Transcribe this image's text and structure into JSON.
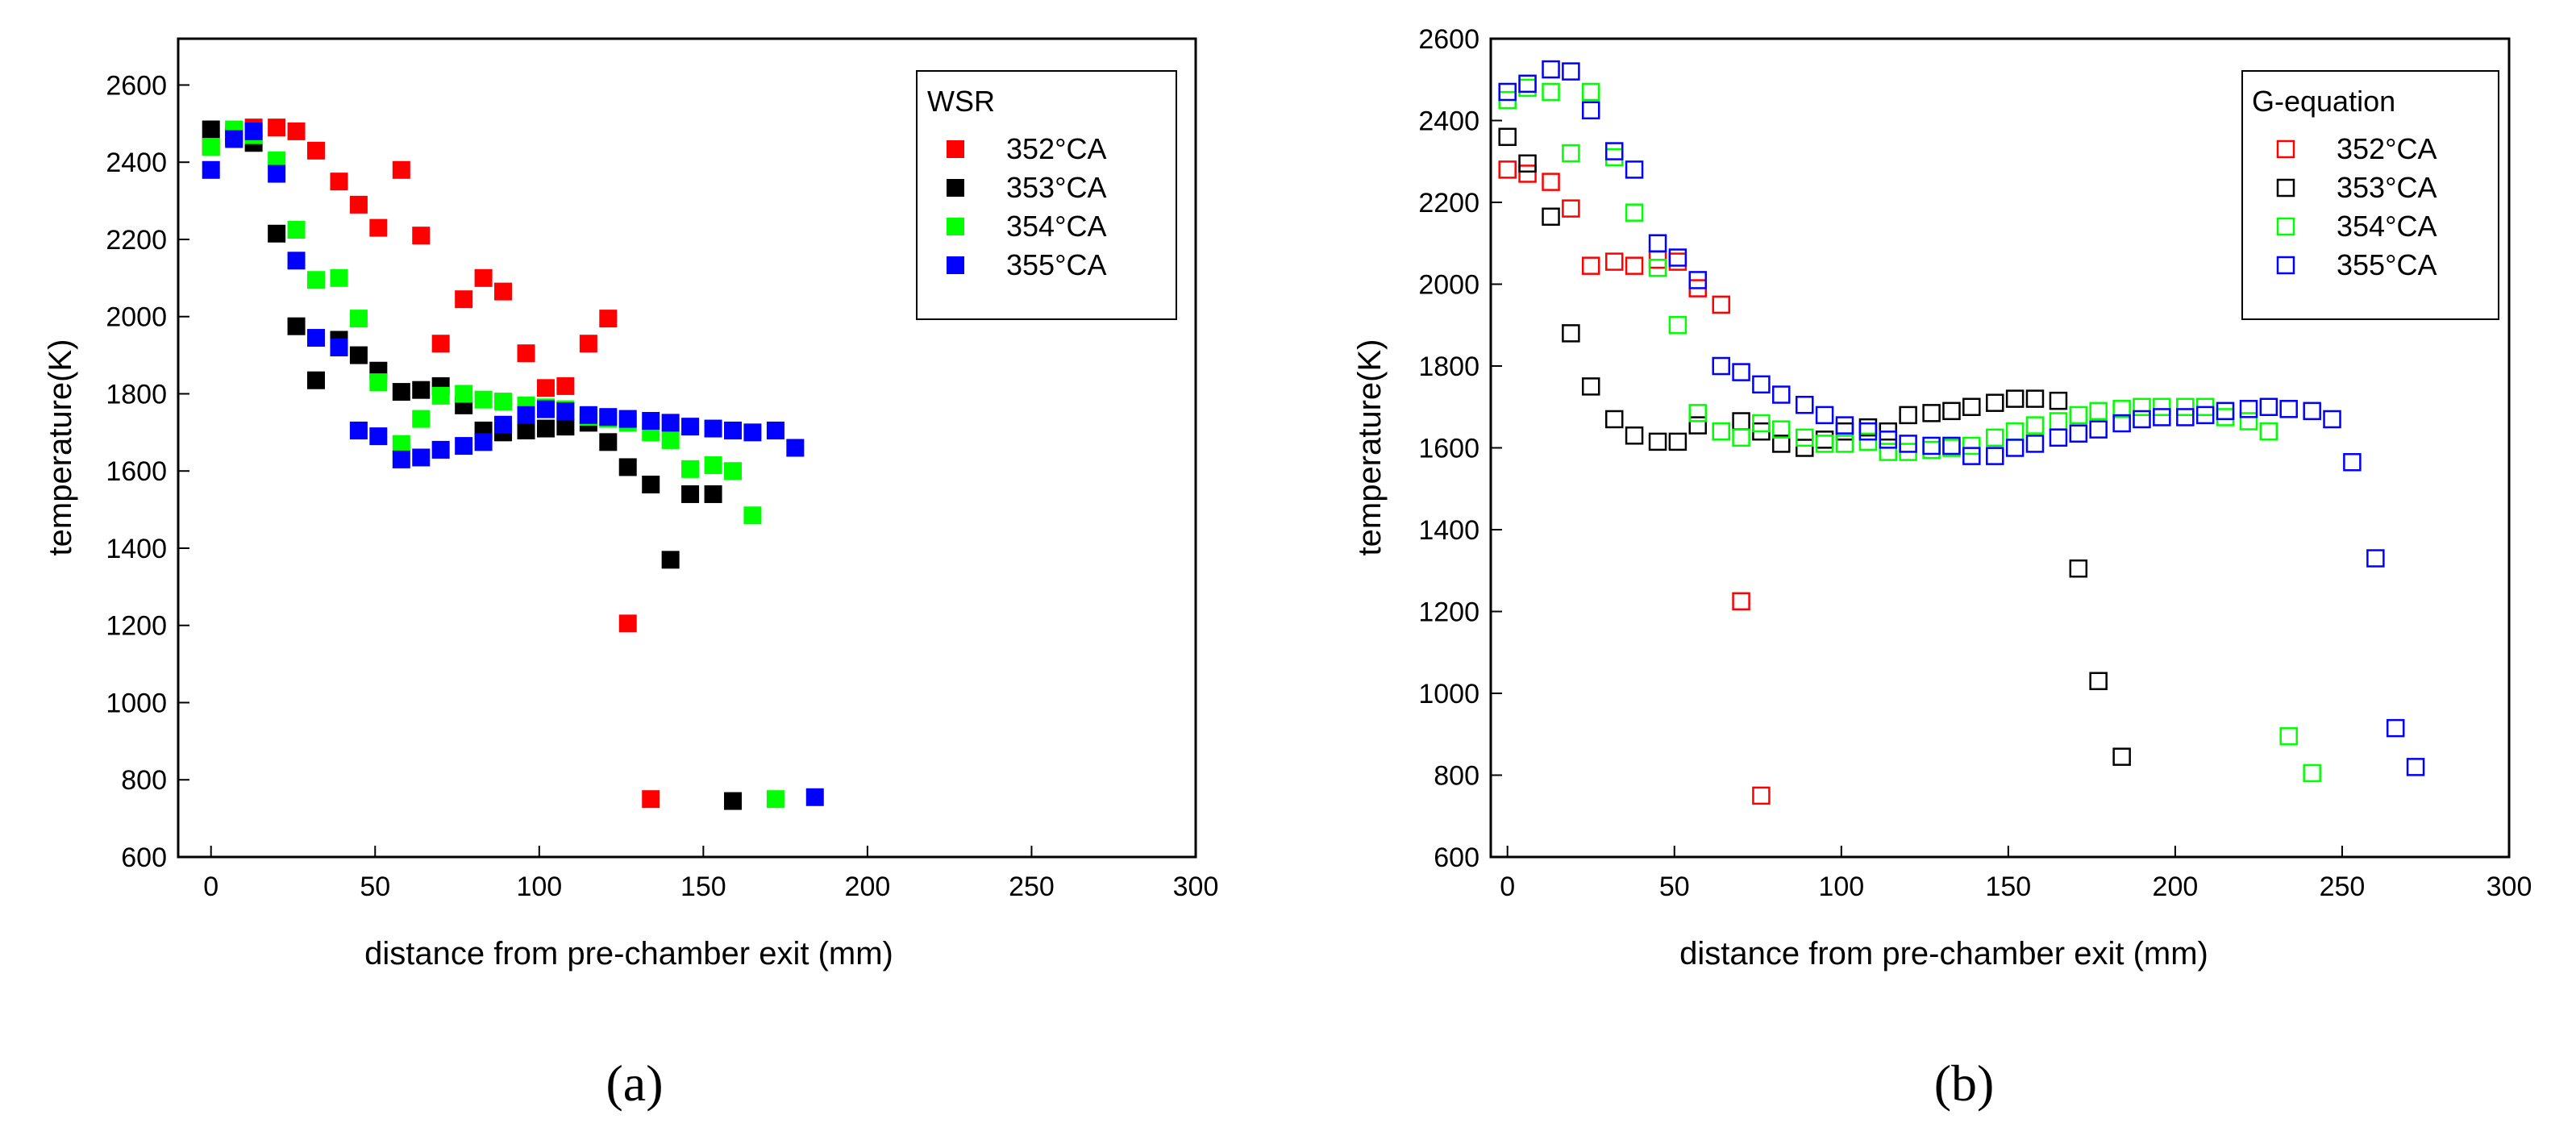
{
  "chart_data": [
    {
      "type": "scatter",
      "panel_label": "(a)",
      "marker": "filled-square",
      "title": "",
      "xlabel": "distance from pre-chamber exit (mm)",
      "ylabel": "temperature(K)",
      "xlim": [
        -10,
        300
      ],
      "ylim": [
        600,
        2720
      ],
      "xticks": [
        0,
        50,
        100,
        150,
        200,
        250,
        300
      ],
      "yticks": [
        600,
        800,
        1000,
        1200,
        1400,
        1600,
        1800,
        2000,
        2200,
        2400,
        2600
      ],
      "legend": {
        "title": "WSR",
        "position": "top-right"
      },
      "series": [
        {
          "name": "352°CA",
          "color": "#ff0000",
          "points": [
            [
              0,
              2440
            ],
            [
              7,
              2475
            ],
            [
              13,
              2490
            ],
            [
              20,
              2490
            ],
            [
              26,
              2480
            ],
            [
              32,
              2430
            ],
            [
              39,
              2350
            ],
            [
              45,
              2290
            ],
            [
              51,
              2230
            ],
            [
              58,
              2380
            ],
            [
              64,
              2210
            ],
            [
              70,
              1930
            ],
            [
              77,
              2045
            ],
            [
              83,
              2100
            ],
            [
              89,
              2065
            ],
            [
              96,
              1905
            ],
            [
              102,
              1815
            ],
            [
              108,
              1820
            ],
            [
              115,
              1930
            ],
            [
              121,
              1995
            ],
            [
              127,
              1205
            ],
            [
              134,
              750
            ]
          ]
        },
        {
          "name": "353°CA",
          "color": "#000000",
          "points": [
            [
              0,
              2485
            ],
            [
              7,
              2465
            ],
            [
              13,
              2450
            ],
            [
              20,
              2215
            ],
            [
              26,
              1975
            ],
            [
              32,
              1835
            ],
            [
              39,
              1940
            ],
            [
              45,
              1900
            ],
            [
              51,
              1860
            ],
            [
              58,
              1805
            ],
            [
              64,
              1810
            ],
            [
              70,
              1820
            ],
            [
              77,
              1770
            ],
            [
              83,
              1705
            ],
            [
              89,
              1700
            ],
            [
              96,
              1705
            ],
            [
              102,
              1710
            ],
            [
              108,
              1715
            ],
            [
              115,
              1725
            ],
            [
              121,
              1675
            ],
            [
              127,
              1610
            ],
            [
              134,
              1565
            ],
            [
              140,
              1370
            ],
            [
              146,
              1540
            ],
            [
              153,
              1540
            ],
            [
              159,
              745
            ]
          ]
        },
        {
          "name": "354°CA",
          "color": "#00ff00",
          "points": [
            [
              0,
              2440
            ],
            [
              7,
              2485
            ],
            [
              13,
              2470
            ],
            [
              20,
              2405
            ],
            [
              26,
              2225
            ],
            [
              32,
              2095
            ],
            [
              39,
              2100
            ],
            [
              45,
              1995
            ],
            [
              51,
              1830
            ],
            [
              58,
              1670
            ],
            [
              64,
              1735
            ],
            [
              70,
              1795
            ],
            [
              77,
              1800
            ],
            [
              83,
              1785
            ],
            [
              89,
              1780
            ],
            [
              96,
              1770
            ],
            [
              102,
              1765
            ],
            [
              108,
              1760
            ],
            [
              115,
              1740
            ],
            [
              121,
              1735
            ],
            [
              127,
              1725
            ],
            [
              134,
              1700
            ],
            [
              140,
              1680
            ],
            [
              146,
              1605
            ],
            [
              153,
              1615
            ],
            [
              159,
              1600
            ],
            [
              165,
              1485
            ],
            [
              172,
              750
            ]
          ]
        },
        {
          "name": "355°CA",
          "color": "#0000ff",
          "points": [
            [
              0,
              2380
            ],
            [
              7,
              2460
            ],
            [
              13,
              2480
            ],
            [
              20,
              2370
            ],
            [
              26,
              2145
            ],
            [
              32,
              1945
            ],
            [
              39,
              1920
            ],
            [
              45,
              1705
            ],
            [
              51,
              1690
            ],
            [
              58,
              1630
            ],
            [
              64,
              1635
            ],
            [
              70,
              1655
            ],
            [
              77,
              1665
            ],
            [
              83,
              1675
            ],
            [
              89,
              1720
            ],
            [
              96,
              1745
            ],
            [
              102,
              1760
            ],
            [
              108,
              1755
            ],
            [
              115,
              1745
            ],
            [
              121,
              1740
            ],
            [
              127,
              1735
            ],
            [
              134,
              1730
            ],
            [
              140,
              1725
            ],
            [
              146,
              1715
            ],
            [
              153,
              1710
            ],
            [
              159,
              1705
            ],
            [
              165,
              1700
            ],
            [
              172,
              1705
            ],
            [
              178,
              1660
            ],
            [
              184,
              755
            ]
          ]
        }
      ]
    },
    {
      "type": "scatter",
      "panel_label": "(b)",
      "marker": "open-square",
      "title": "",
      "xlabel": "distance from pre-chamber exit (mm)",
      "ylabel": "temperature(K)",
      "xlim": [
        -5,
        300
      ],
      "ylim": [
        600,
        2600
      ],
      "xticks": [
        0,
        50,
        100,
        150,
        200,
        250,
        300
      ],
      "yticks": [
        600,
        800,
        1000,
        1200,
        1400,
        1600,
        1800,
        2000,
        2200,
        2400,
        2600
      ],
      "legend": {
        "title": "G-equation",
        "position": "top-right"
      },
      "series": [
        {
          "name": "352°CA",
          "color": "#ff0000",
          "points": [
            [
              0,
              2280
            ],
            [
              6,
              2270
            ],
            [
              13,
              2250
            ],
            [
              19,
              2185
            ],
            [
              25,
              2045
            ],
            [
              32,
              2055
            ],
            [
              38,
              2045
            ],
            [
              45,
              2060
            ],
            [
              51,
              2055
            ],
            [
              57,
              1990
            ],
            [
              64,
              1950
            ],
            [
              70,
              1225
            ],
            [
              76,
              750
            ]
          ]
        },
        {
          "name": "353°CA",
          "color": "#000000",
          "points": [
            [
              0,
              2360
            ],
            [
              6,
              2295
            ],
            [
              13,
              2165
            ],
            [
              19,
              1880
            ],
            [
              25,
              1750
            ],
            [
              32,
              1670
            ],
            [
              38,
              1630
            ],
            [
              45,
              1615
            ],
            [
              51,
              1615
            ],
            [
              57,
              1655
            ],
            [
              64,
              1640
            ],
            [
              70,
              1665
            ],
            [
              76,
              1640
            ],
            [
              82,
              1610
            ],
            [
              89,
              1600
            ],
            [
              95,
              1620
            ],
            [
              101,
              1640
            ],
            [
              108,
              1650
            ],
            [
              114,
              1640
            ],
            [
              120,
              1680
            ],
            [
              127,
              1685
            ],
            [
              133,
              1690
            ],
            [
              139,
              1700
            ],
            [
              146,
              1710
            ],
            [
              152,
              1720
            ],
            [
              158,
              1720
            ],
            [
              165,
              1715
            ],
            [
              171,
              1305
            ],
            [
              177,
              1030
            ],
            [
              184,
              845
            ]
          ]
        },
        {
          "name": "354°CA",
          "color": "#00ff00",
          "points": [
            [
              0,
              2450
            ],
            [
              6,
              2480
            ],
            [
              13,
              2470
            ],
            [
              19,
              2320
            ],
            [
              25,
              2470
            ],
            [
              32,
              2310
            ],
            [
              38,
              2175
            ],
            [
              45,
              2040
            ],
            [
              51,
              1900
            ],
            [
              57,
              1685
            ],
            [
              64,
              1640
            ],
            [
              70,
              1625
            ],
            [
              76,
              1660
            ],
            [
              82,
              1645
            ],
            [
              89,
              1625
            ],
            [
              95,
              1610
            ],
            [
              101,
              1610
            ],
            [
              108,
              1615
            ],
            [
              114,
              1590
            ],
            [
              120,
              1590
            ],
            [
              127,
              1595
            ],
            [
              133,
              1600
            ],
            [
              139,
              1605
            ],
            [
              146,
              1625
            ],
            [
              152,
              1640
            ],
            [
              158,
              1655
            ],
            [
              165,
              1665
            ],
            [
              171,
              1680
            ],
            [
              177,
              1690
            ],
            [
              184,
              1695
            ],
            [
              190,
              1700
            ],
            [
              196,
              1700
            ],
            [
              203,
              1700
            ],
            [
              209,
              1700
            ],
            [
              215,
              1675
            ],
            [
              222,
              1665
            ],
            [
              228,
              1640
            ],
            [
              234,
              895
            ],
            [
              241,
              805
            ]
          ]
        },
        {
          "name": "355°CA",
          "color": "#0000ff",
          "points": [
            [
              0,
              2470
            ],
            [
              6,
              2490
            ],
            [
              13,
              2525
            ],
            [
              19,
              2520
            ],
            [
              25,
              2425
            ],
            [
              32,
              2325
            ],
            [
              38,
              2280
            ],
            [
              45,
              2100
            ],
            [
              51,
              2065
            ],
            [
              57,
              2010
            ],
            [
              64,
              1800
            ],
            [
              70,
              1785
            ],
            [
              76,
              1755
            ],
            [
              82,
              1730
            ],
            [
              89,
              1705
            ],
            [
              95,
              1680
            ],
            [
              101,
              1655
            ],
            [
              108,
              1640
            ],
            [
              114,
              1620
            ],
            [
              120,
              1610
            ],
            [
              127,
              1605
            ],
            [
              133,
              1605
            ],
            [
              139,
              1580
            ],
            [
              146,
              1580
            ],
            [
              152,
              1600
            ],
            [
              158,
              1610
            ],
            [
              165,
              1625
            ],
            [
              171,
              1635
            ],
            [
              177,
              1645
            ],
            [
              184,
              1660
            ],
            [
              190,
              1670
            ],
            [
              196,
              1675
            ],
            [
              203,
              1675
            ],
            [
              209,
              1680
            ],
            [
              215,
              1690
            ],
            [
              222,
              1695
            ],
            [
              228,
              1700
            ],
            [
              234,
              1695
            ],
            [
              241,
              1690
            ],
            [
              247,
              1670
            ],
            [
              253,
              1565
            ],
            [
              260,
              1330
            ],
            [
              266,
              915
            ],
            [
              272,
              820
            ]
          ]
        }
      ]
    }
  ]
}
